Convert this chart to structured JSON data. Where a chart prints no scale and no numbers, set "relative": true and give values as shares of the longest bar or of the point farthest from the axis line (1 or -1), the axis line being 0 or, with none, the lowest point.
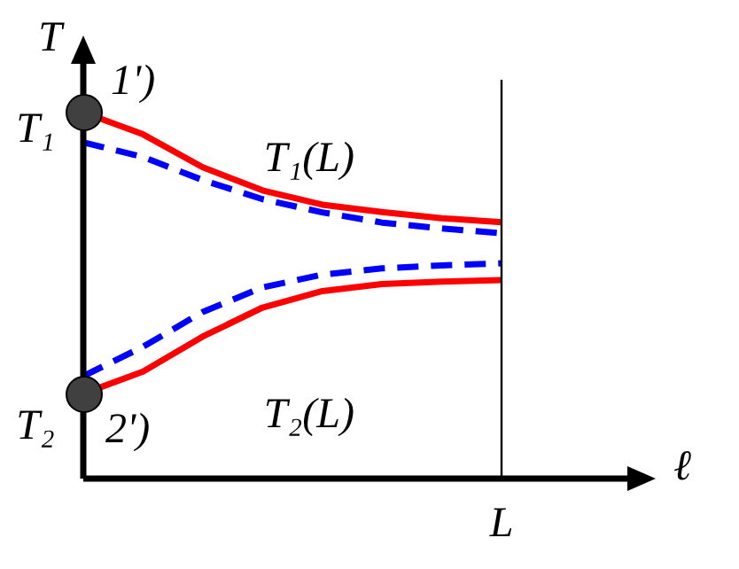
{
  "chart_data": {
    "type": "line",
    "relative": true,
    "xlabel": "ℓ",
    "ylabel": "T",
    "categories": [
      null,
      null,
      null,
      null,
      null,
      null,
      null,
      null
    ],
    "series": [
      {
        "color": "#ff0000",
        "line_style": "solid",
        "values": [
          1,
          0.94,
          0.85,
          0.787,
          0.748,
          0.728,
          0.711,
          0.7
        ]
      },
      {
        "color": "#0000ff",
        "line_style": "dashed",
        "values": [
          0.918,
          0.878,
          0.815,
          0.763,
          0.727,
          0.699,
          0.683,
          0.67
        ]
      },
      {
        "color": "#0000ff",
        "line_style": "dashed",
        "values": [
          0.28,
          0.36,
          0.455,
          0.522,
          0.557,
          0.574,
          0.582,
          0.588
        ]
      },
      {
        "color": "#ff0000",
        "line_style": "solid",
        "values": [
          0.232,
          0.292,
          0.388,
          0.467,
          0.512,
          0.531,
          0.538,
          0.542
        ]
      }
    ],
    "ref_lines": [
      {
        "axis": "x",
        "label": "L",
        "color": "#000000"
      }
    ],
    "annotations": [
      "T₁",
      "T₂",
      "1')",
      "2')",
      "T₁(L)",
      "T₂(L)"
    ]
  }
}
